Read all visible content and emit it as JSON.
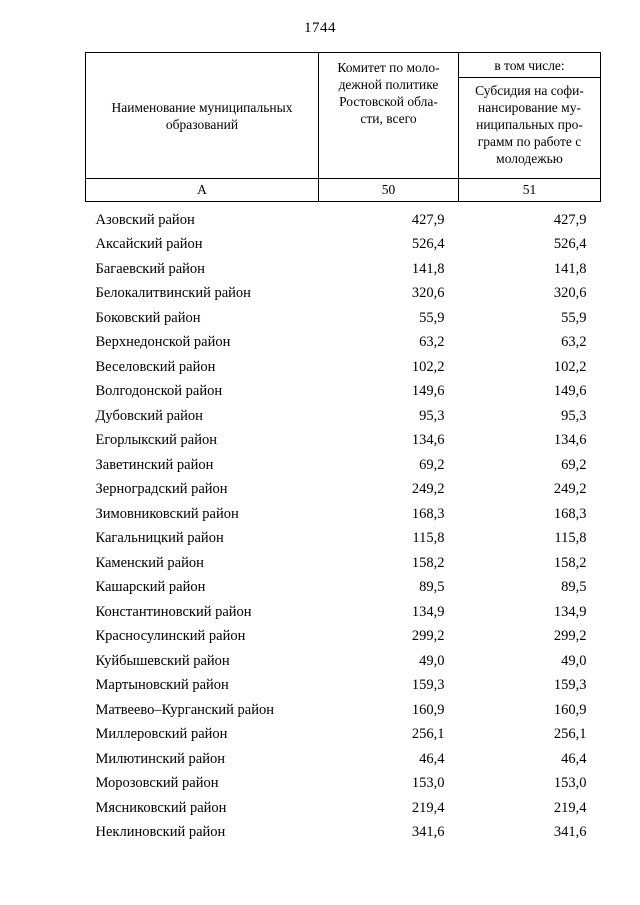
{
  "page_number": "1744",
  "table": {
    "headers": {
      "name_col": "Наименование муниципальных\nобразований",
      "committee_col": "Комитет по моло-\nдежной политике\nРостовской обла-\nсти, всего",
      "including": "в том числе:",
      "subsidy_col": "Субсидия на софи-\nнансирование му-\nниципальных про-\nграмм по работе с\nмолодежью"
    },
    "code_row": {
      "name": "А",
      "committee": "50",
      "subsidy": "51"
    },
    "rows": [
      {
        "name": "Азовский район",
        "total": "427,9",
        "subsidy": "427,9"
      },
      {
        "name": "Аксайский район",
        "total": "526,4",
        "subsidy": "526,4"
      },
      {
        "name": "Багаевский район",
        "total": "141,8",
        "subsidy": "141,8"
      },
      {
        "name": "Белокалитвинский район",
        "total": "320,6",
        "subsidy": "320,6"
      },
      {
        "name": "Боковский район",
        "total": "55,9",
        "subsidy": "55,9"
      },
      {
        "name": "Верхнедонской район",
        "total": "63,2",
        "subsidy": "63,2"
      },
      {
        "name": "Веселовский район",
        "total": "102,2",
        "subsidy": "102,2"
      },
      {
        "name": "Волгодонской район",
        "total": "149,6",
        "subsidy": "149,6"
      },
      {
        "name": "Дубовский район",
        "total": "95,3",
        "subsidy": "95,3"
      },
      {
        "name": "Егорлыкский район",
        "total": "134,6",
        "subsidy": "134,6"
      },
      {
        "name": "Заветинский район",
        "total": "69,2",
        "subsidy": "69,2"
      },
      {
        "name": "Зерноградский район",
        "total": "249,2",
        "subsidy": "249,2"
      },
      {
        "name": "Зимовниковский район",
        "total": "168,3",
        "subsidy": "168,3"
      },
      {
        "name": "Кагальницкий район",
        "total": "115,8",
        "subsidy": "115,8"
      },
      {
        "name": "Каменский район",
        "total": "158,2",
        "subsidy": "158,2"
      },
      {
        "name": "Кашарский район",
        "total": "89,5",
        "subsidy": "89,5"
      },
      {
        "name": "Константиновский район",
        "total": "134,9",
        "subsidy": "134,9"
      },
      {
        "name": "Красносулинский район",
        "total": "299,2",
        "subsidy": "299,2"
      },
      {
        "name": "Куйбышевский район",
        "total": "49,0",
        "subsidy": "49,0"
      },
      {
        "name": "Мартыновский район",
        "total": "159,3",
        "subsidy": "159,3"
      },
      {
        "name": "Матвеево–Курганский район",
        "total": "160,9",
        "subsidy": "160,9"
      },
      {
        "name": "Миллеровский район",
        "total": "256,1",
        "subsidy": "256,1"
      },
      {
        "name": "Милютинский район",
        "total": "46,4",
        "subsidy": "46,4"
      },
      {
        "name": "Морозовский район",
        "total": "153,0",
        "subsidy": "153,0"
      },
      {
        "name": "Мясниковский район",
        "total": "219,4",
        "subsidy": "219,4"
      },
      {
        "name": "Неклиновский район",
        "total": "341,6",
        "subsidy": "341,6"
      }
    ]
  }
}
